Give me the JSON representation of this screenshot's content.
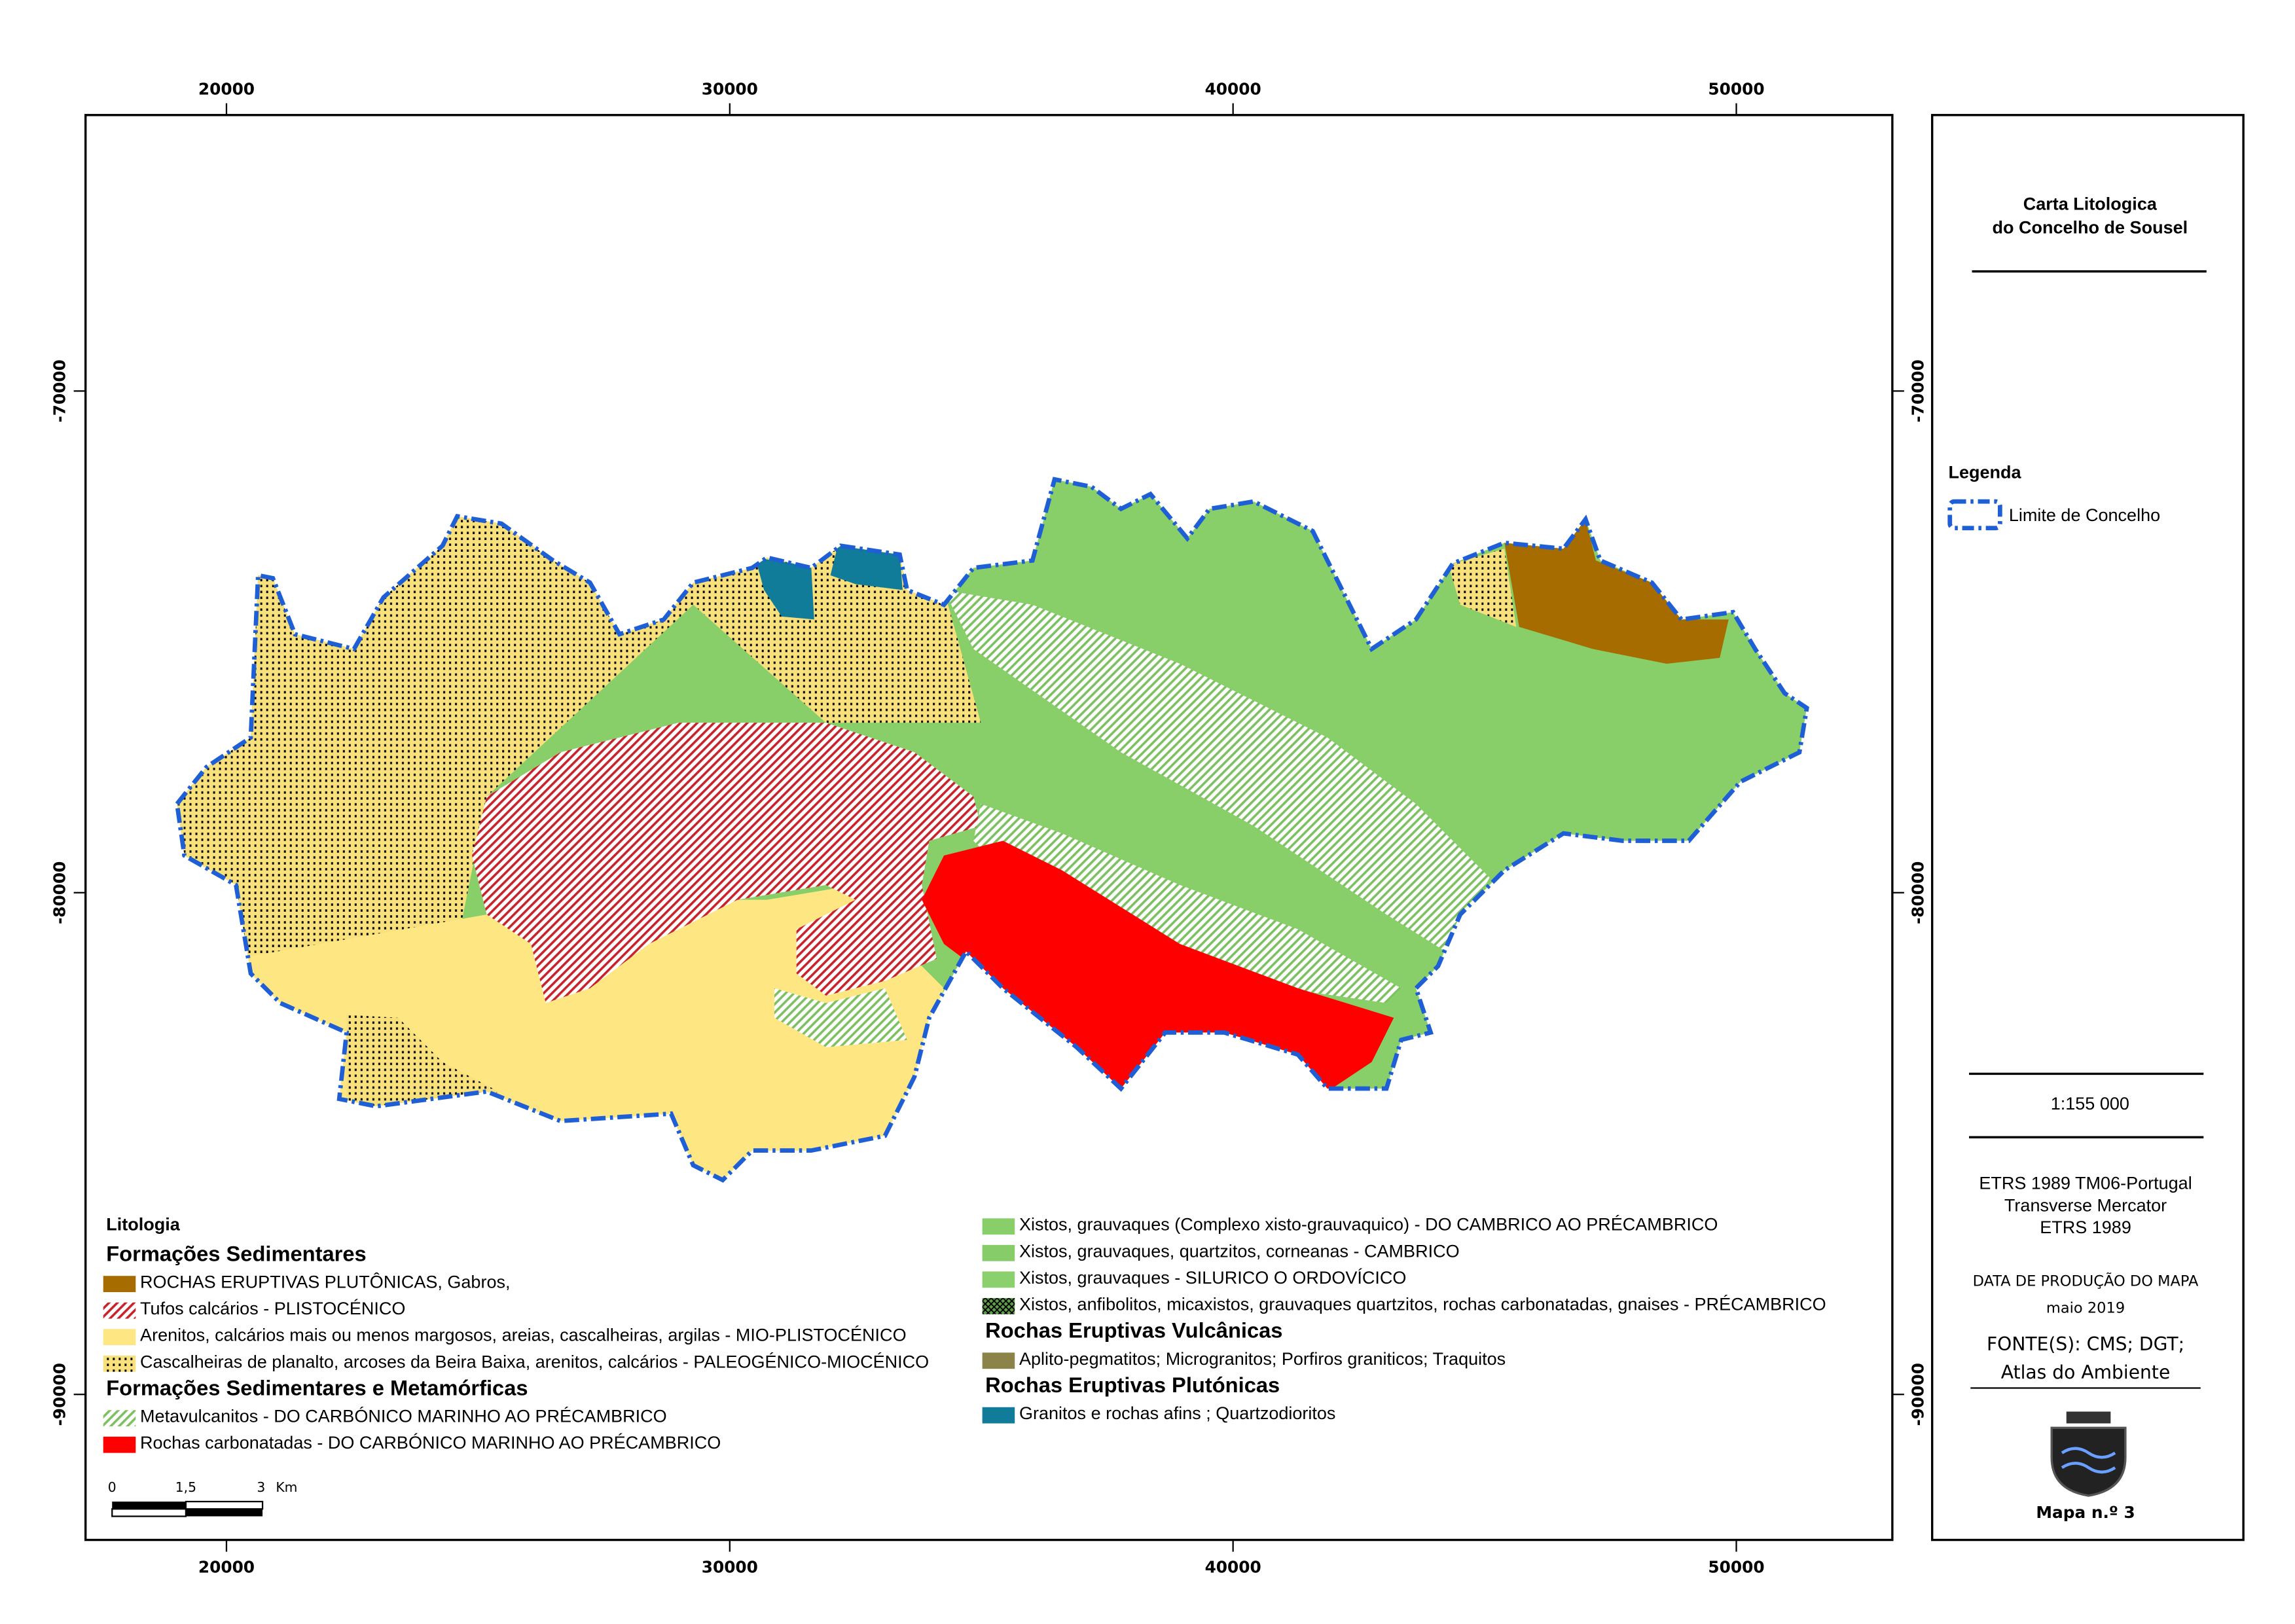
{
  "title": [
    "Carta Litologica",
    "do Concelho de Sousel"
  ],
  "grid": {
    "xlim": [
      17200,
      53100
    ],
    "ylim": [
      -92900,
      -64500
    ],
    "xticks": [
      20000,
      30000,
      40000,
      50000
    ],
    "yticks": [
      -70000,
      -80000,
      -90000
    ]
  },
  "legend": {
    "title": "Litologia",
    "columns": [
      [
        {
          "heading": "Formações Sedimentares"
        },
        {
          "label": "ROCHAS ERUPTIVAS PLUTÔNICAS, Gabros,",
          "color": "#a66c00",
          "fill": "solid"
        },
        {
          "label": "Tufos calcários - PLISTOCÉNICO",
          "color": "#c8222c",
          "fill": "hatch"
        },
        {
          "label": "Arenitos, calcários mais ou menos margosos, areias, cascalheiras, argilas - MIO-PLISTOCÉNICO",
          "color": "#fee783",
          "fill": "solid"
        },
        {
          "label": "Cascalheiras de planalto, arcoses da Beira Baixa, arenitos, calcários - PALEOGÉNICO-MIOCÉNICO",
          "color": "#f8e07c",
          "fill": "dots"
        },
        {
          "heading": "Formações Sedimentares e Metamórficas"
        },
        {
          "label": "Metavulcanitos - DO CARBÓNICO MARINHO AO PRÉCAMBRICO",
          "color": "#7cc060",
          "fill": "hatch"
        },
        {
          "label": "Rochas carbonatadas - DO CARBÓNICO MARINHO AO PRÉCAMBRICO",
          "color": "#ff0000",
          "fill": "solid"
        }
      ],
      [
        {
          "label": "Xistos, grauvaques (Complexo xisto-grauvaquico) - DO CAMBRICO AO PRÉCAMBRICO",
          "color": "#88cf6a",
          "fill": "solid"
        },
        {
          "label": "Xistos, grauvaques, quartzitos, corneanas - CAMBRICO",
          "color": "#86cc68",
          "fill": "solid"
        },
        {
          "label": "Xistos, grauvaques - SILURICO O ORDOVÍCICO",
          "color": "#8ad06c",
          "fill": "solid"
        },
        {
          "label": "Xistos, anfibolitos, micaxistos, grauvaques quartzitos, rochas carbonatadas, gnaises - PRÉCAMBRICO",
          "color": "#5f9e4a",
          "fill": "cross"
        },
        {
          "heading": "Rochas Eruptivas Vulcânicas"
        },
        {
          "label": "Aplito-pegmatitos; Microgranitos; Porfiros graniticos; Traquitos",
          "color": "#8c8348",
          "fill": "solid"
        },
        {
          "heading": "Rochas Eruptivas Plutónicas"
        },
        {
          "label": "Granitos e rochas afins ; Quartzodioritos",
          "color": "#117b9a",
          "fill": "solid"
        }
      ]
    ]
  },
  "scale_bar": {
    "labels": [
      "0",
      "1,5",
      "3"
    ],
    "unit": "Km"
  },
  "panel": {
    "legend_title": "Legenda",
    "boundary_label": "Limite de Concelho",
    "scale": "1:155 000",
    "crs": [
      "ETRS 1989 TM06-Portugal",
      "Transverse Mercator",
      "ETRS 1989"
    ],
    "date_label": "DATA DE PRODUÇÃO DO MAPA",
    "date": "maio 2019",
    "source": [
      "FONTE(S): CMS; DGT;",
      "Atlas do Ambiente"
    ],
    "map_number": "Mapa n.º 3"
  }
}
